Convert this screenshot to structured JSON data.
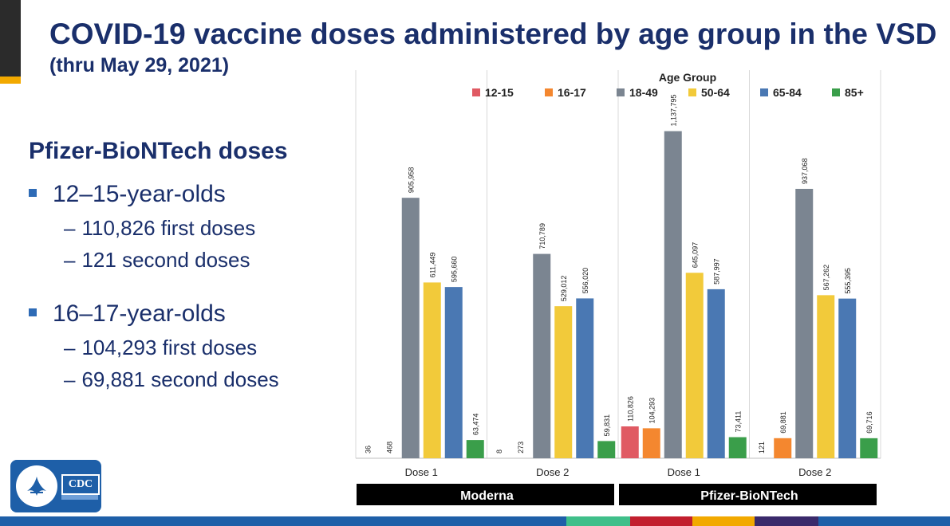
{
  "slide": {
    "title": "COVID-19 vaccine doses administered by age group in the VSD",
    "subtitle": "(thru May 29, 2021)",
    "section_heading": "Pfizer-BioNTech doses",
    "bullets": [
      {
        "label": "12–15-year-olds",
        "subs": [
          "110,826 first doses",
          "121 second doses"
        ]
      },
      {
        "label": "16–17-year-olds",
        "subs": [
          "104,293 first doses",
          "69,881 second doses"
        ]
      }
    ],
    "logo": {
      "text": "CDC"
    }
  },
  "colors": {
    "title": "#1a2f6b",
    "accent_dark": "#2b2b2b",
    "accent_gold": "#f2a900",
    "footer": [
      "#1e5fa8",
      "#3fbf8a",
      "#c21f2e",
      "#f2a900",
      "#3a2a6b",
      "#1e5fa8"
    ]
  },
  "chart_data": {
    "type": "bar",
    "legend_title": "Age Group",
    "legend_position": "top-right",
    "series": [
      {
        "name": "12-15",
        "color": "#e05a63",
        "values": [
          36,
          8,
          110826,
          121
        ]
      },
      {
        "name": "16-17",
        "color": "#f4872f",
        "values": [
          468,
          273,
          104293,
          69881
        ]
      },
      {
        "name": "18-49",
        "color": "#7b8591",
        "values": [
          905958,
          710789,
          1137795,
          937068
        ]
      },
      {
        "name": "50-64",
        "color": "#f2ca3a",
        "values": [
          611449,
          529012,
          645097,
          567262
        ]
      },
      {
        "name": "65-84",
        "color": "#4a78b3",
        "values": [
          595660,
          556020,
          587997,
          555395
        ]
      },
      {
        "name": "85+",
        "color": "#3a9e4a",
        "values": [
          63474,
          59831,
          73411,
          69716
        ]
      }
    ],
    "categories": [
      "Dose 1",
      "Dose 2",
      "Dose 1",
      "Dose 2"
    ],
    "groups": [
      {
        "label": "Moderna",
        "categories": [
          0,
          1
        ]
      },
      {
        "label": "Pfizer-BioNTech",
        "categories": [
          2,
          3
        ]
      }
    ],
    "ylim": [
      0,
      1350000
    ],
    "grid": false
  }
}
